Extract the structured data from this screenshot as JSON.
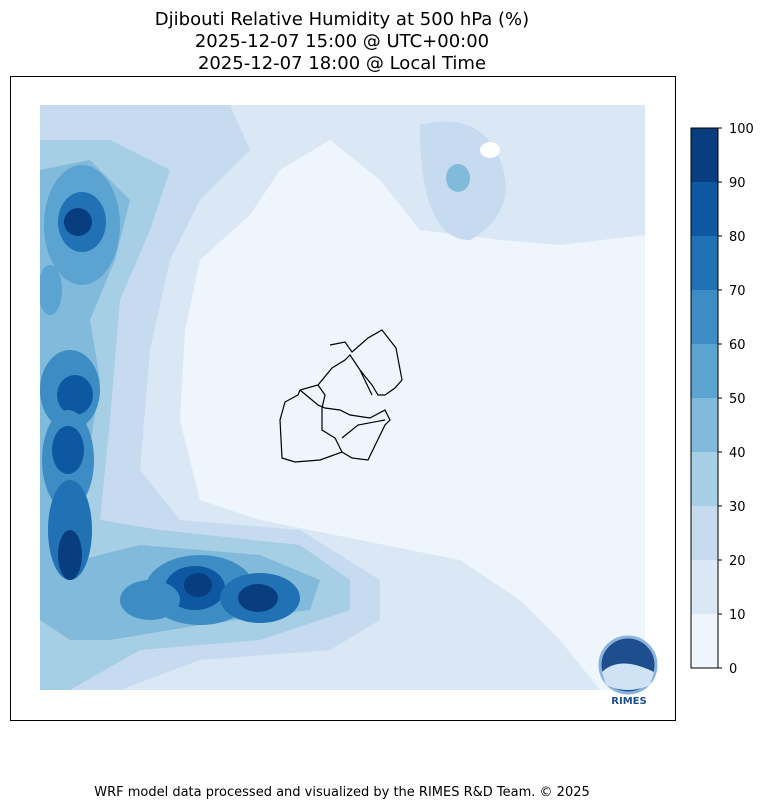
{
  "header": {
    "title_lines": [
      "Djibouti Relative Humidity at 500 hPa (%)",
      "2025-12-07 15:00 @ UTC+00:00",
      "2025-12-07 18:00 @ Local Time"
    ]
  },
  "colorbar": {
    "ticks": [
      0,
      10,
      20,
      30,
      40,
      50,
      60,
      70,
      80,
      90,
      100
    ],
    "colors": [
      "#eef5fc",
      "#dae8f5",
      "#c6dbef",
      "#a6cee4",
      "#82badb",
      "#5ba3d0",
      "#3d8dc4",
      "#2171b5",
      "#0d58a1",
      "#083d7f"
    ]
  },
  "logo": {
    "text": "RIMES"
  },
  "footer": "WRF model data processed and visualized by the RIMES R&D Team. © 2025"
}
